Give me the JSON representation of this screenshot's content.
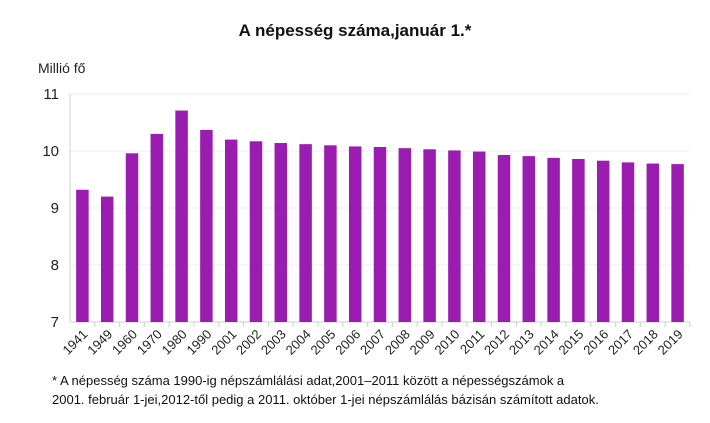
{
  "chart_data": {
    "type": "bar",
    "title": "A népesség száma,január 1.*",
    "ylabel": "Millió fő",
    "xlabel": "",
    "categories": [
      "1941",
      "1949",
      "1960",
      "1970",
      "1980",
      "1990",
      "2001",
      "2002",
      "2003",
      "2004",
      "2005",
      "2006",
      "2007",
      "2008",
      "2009",
      "2010",
      "2011",
      "2012",
      "2013",
      "2014",
      "2015",
      "2016",
      "2017",
      "2018",
      "2019"
    ],
    "values": [
      9.32,
      9.2,
      9.96,
      10.3,
      10.71,
      10.37,
      10.2,
      10.17,
      10.14,
      10.12,
      10.1,
      10.08,
      10.07,
      10.05,
      10.03,
      10.01,
      9.99,
      9.93,
      9.91,
      9.88,
      9.86,
      9.83,
      9.8,
      9.78,
      9.77
    ],
    "ylim": [
      7,
      11
    ],
    "yticks": [
      7,
      8,
      9,
      10,
      11
    ],
    "grid": true,
    "bar_color": "#9b1cb0"
  },
  "footnote": {
    "line1": "* A népesség száma 1990-ig népszámlálási adat,2001–2011 között a népességszámok a",
    "line2": "2001. február 1-jei,2012-től pedig a 2011. október 1-jei népszámlálás bázisán számított adatok."
  }
}
